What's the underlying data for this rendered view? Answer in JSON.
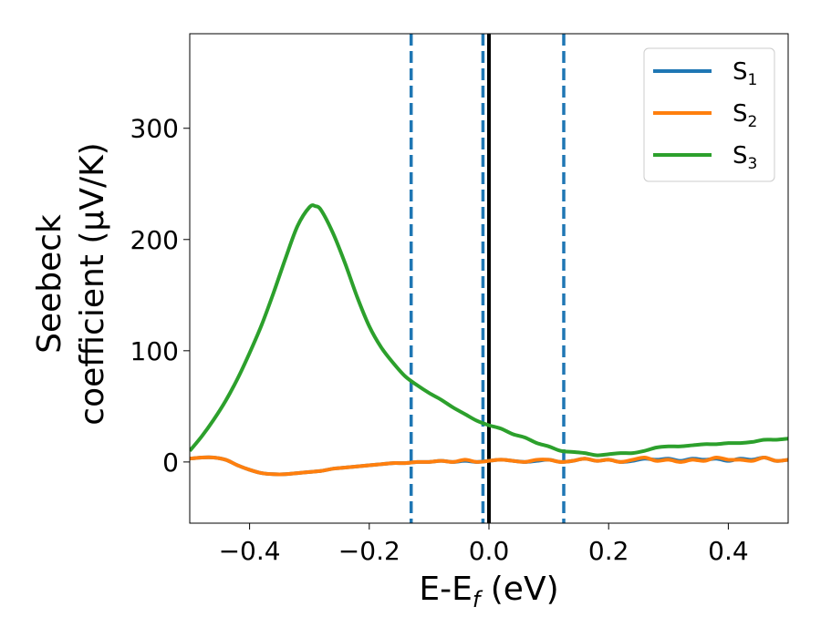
{
  "chart_data": {
    "type": "line",
    "xlabel": "E-E",
    "xlabel_sub": "f",
    "xlabel_unit": " (eV)",
    "ylabel_line1": "Seebeck",
    "ylabel_line2": "coefficient  (μV/K)",
    "xlim": [
      -0.5,
      0.5
    ],
    "ylim": [
      -55,
      385
    ],
    "xticks": [
      -0.4,
      -0.2,
      0.0,
      0.2,
      0.4
    ],
    "xtick_labels": [
      "−0.4",
      "−0.2",
      "0.0",
      "0.2",
      "0.4"
    ],
    "yticks": [
      0,
      100,
      200,
      300
    ],
    "ytick_labels": [
      "0",
      "100",
      "200",
      "300"
    ],
    "grid": false,
    "legend_position": "top-right",
    "vlines": [
      {
        "x": -0.13,
        "style": "dashed",
        "color": "#1f77b4"
      },
      {
        "x": -0.01,
        "style": "dashed",
        "color": "#1f77b4"
      },
      {
        "x": 0.0,
        "style": "solid",
        "color": "#000000"
      },
      {
        "x": 0.125,
        "style": "dashed",
        "color": "#1f77b4"
      }
    ],
    "series": [
      {
        "name": "S",
        "sub": "1",
        "color": "#1f77b4",
        "x": [
          -0.5,
          -0.48,
          -0.46,
          -0.44,
          -0.42,
          -0.4,
          -0.38,
          -0.36,
          -0.34,
          -0.32,
          -0.3,
          -0.28,
          -0.26,
          -0.24,
          -0.22,
          -0.2,
          -0.18,
          -0.16,
          -0.14,
          -0.12,
          -0.1,
          -0.08,
          -0.06,
          -0.04,
          -0.02,
          0.0,
          0.02,
          0.04,
          0.06,
          0.08,
          0.1,
          0.12,
          0.14,
          0.16,
          0.18,
          0.2,
          0.22,
          0.24,
          0.26,
          0.28,
          0.3,
          0.32,
          0.34,
          0.36,
          0.38,
          0.4,
          0.42,
          0.44,
          0.46,
          0.48,
          0.5
        ],
        "y": [
          3,
          4,
          4,
          2,
          -3,
          -7,
          -10,
          -11,
          -11,
          -10,
          -9,
          -8,
          -6,
          -5,
          -4,
          -3,
          -2,
          -1,
          -1,
          0,
          0,
          1,
          0,
          1,
          0,
          1,
          2,
          1,
          0,
          1,
          2,
          0,
          1,
          3,
          1,
          2,
          0,
          1,
          3,
          2,
          3,
          1,
          3,
          2,
          3,
          1,
          3,
          2,
          4,
          1,
          2
        ]
      },
      {
        "name": "S",
        "sub": "2",
        "color": "#ff7f0e",
        "x": [
          -0.5,
          -0.48,
          -0.46,
          -0.44,
          -0.42,
          -0.4,
          -0.38,
          -0.36,
          -0.34,
          -0.32,
          -0.3,
          -0.28,
          -0.26,
          -0.24,
          -0.22,
          -0.2,
          -0.18,
          -0.16,
          -0.14,
          -0.12,
          -0.1,
          -0.08,
          -0.06,
          -0.04,
          -0.02,
          0.0,
          0.02,
          0.04,
          0.06,
          0.08,
          0.1,
          0.12,
          0.14,
          0.16,
          0.18,
          0.2,
          0.22,
          0.24,
          0.26,
          0.28,
          0.3,
          0.32,
          0.34,
          0.36,
          0.38,
          0.4,
          0.42,
          0.44,
          0.46,
          0.48,
          0.5
        ],
        "y": [
          3,
          4,
          4,
          2,
          -3,
          -7,
          -10,
          -11,
          -11,
          -10,
          -9,
          -8,
          -6,
          -5,
          -4,
          -3,
          -2,
          -1,
          -1,
          0,
          0,
          1,
          0,
          2,
          0,
          1,
          2,
          1,
          0,
          2,
          2,
          0,
          1,
          3,
          1,
          2,
          0,
          2,
          4,
          1,
          2,
          0,
          2,
          1,
          4,
          2,
          2,
          1,
          4,
          1,
          2
        ]
      },
      {
        "name": "S",
        "sub": "3",
        "color": "#2ca02c",
        "x": [
          -0.5,
          -0.48,
          -0.46,
          -0.44,
          -0.42,
          -0.4,
          -0.38,
          -0.36,
          -0.34,
          -0.32,
          -0.3,
          -0.29,
          -0.28,
          -0.26,
          -0.24,
          -0.22,
          -0.2,
          -0.18,
          -0.16,
          -0.14,
          -0.12,
          -0.1,
          -0.08,
          -0.06,
          -0.04,
          -0.02,
          0.0,
          0.02,
          0.04,
          0.06,
          0.08,
          0.1,
          0.12,
          0.14,
          0.16,
          0.18,
          0.2,
          0.22,
          0.24,
          0.26,
          0.28,
          0.3,
          0.32,
          0.34,
          0.36,
          0.38,
          0.4,
          0.42,
          0.44,
          0.46,
          0.48,
          0.5
        ],
        "y": [
          10,
          23,
          38,
          55,
          75,
          98,
          123,
          152,
          183,
          212,
          229,
          230,
          226,
          205,
          178,
          148,
          122,
          103,
          89,
          77,
          69,
          62,
          56,
          49,
          43,
          37,
          33,
          30,
          25,
          22,
          17,
          14,
          10,
          9,
          8,
          6,
          7,
          8,
          8,
          10,
          13,
          14,
          14,
          15,
          16,
          16,
          17,
          17,
          18,
          20,
          20,
          21
        ]
      }
    ]
  }
}
